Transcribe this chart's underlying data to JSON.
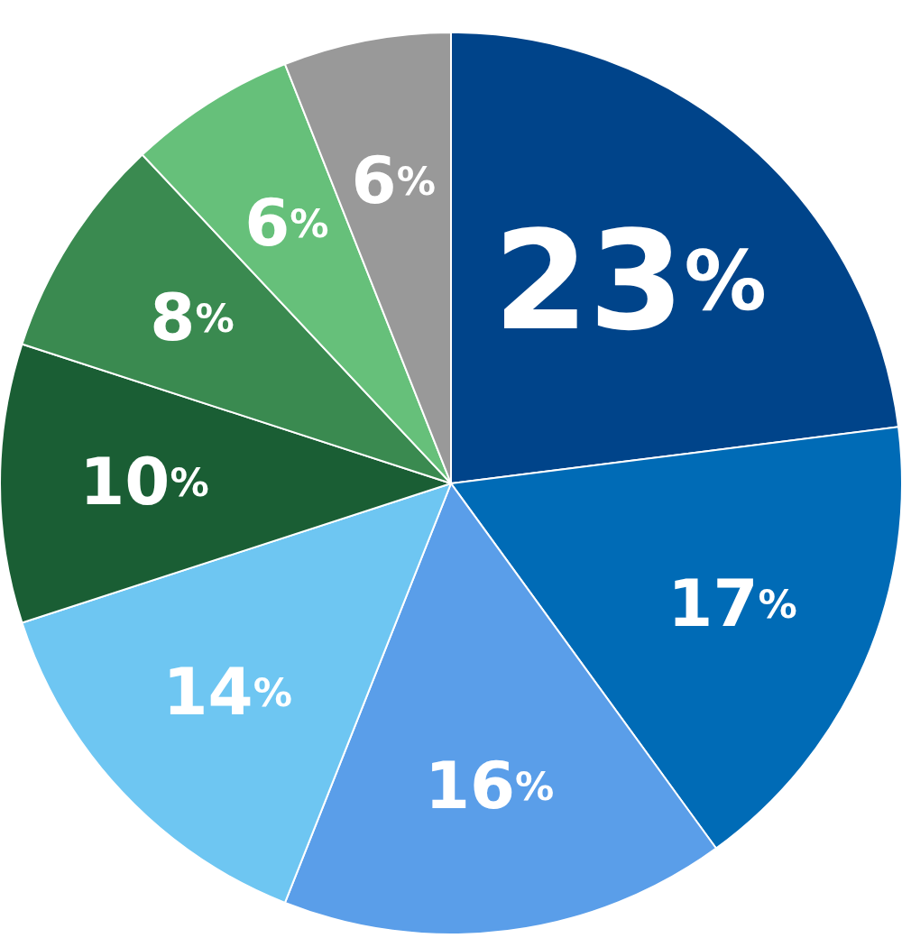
{
  "chart_data": {
    "type": "pie",
    "categories": [
      null,
      null,
      null,
      null,
      null,
      null,
      null,
      null
    ],
    "values": [
      23,
      17,
      16,
      14,
      10,
      8,
      6,
      6
    ],
    "colors": [
      "#00448a",
      "#006bb6",
      "#5a9ee9",
      "#6ec6f2",
      "#1a5e34",
      "#3a8a50",
      "#66c07a",
      "#999999"
    ],
    "value_labels": [
      "23%",
      "17%",
      "16%",
      "14%",
      "10%",
      "8%",
      "6%",
      "6%"
    ]
  }
}
